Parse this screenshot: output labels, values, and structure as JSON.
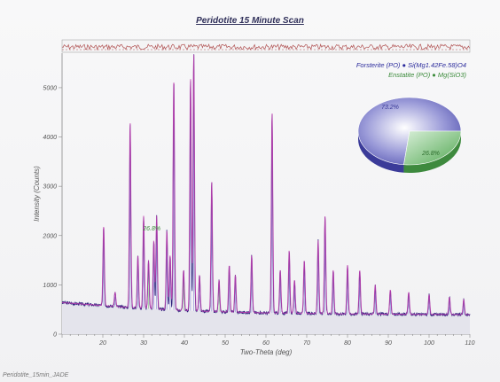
{
  "title": "Peridotite 15 Minute Scan",
  "footer": "Peridotite_15min_JADE",
  "legend": [
    {
      "label": "Forsterite (PO) ● Si(Mg1.42Fe.58)O4",
      "color": "#3b3bb3"
    },
    {
      "label": "Enstatite (PO) ● Mg(SiO3)",
      "color": "#3e9a3e"
    }
  ],
  "colors": {
    "observed": "#2a1f7a",
    "calculated": "#c040b0",
    "residual": "#b05050",
    "forsterite": "#5555cc",
    "enstatite": "#4aa84a"
  },
  "chart_data": {
    "type": "line",
    "title": "Peridotite 15 Minute Scan",
    "xlabel": "Two-Theta (deg)",
    "ylabel": "Intensity (Counts)",
    "xlim": [
      10,
      110
    ],
    "ylim": [
      0,
      5700
    ],
    "xticks": [
      20,
      30,
      40,
      50,
      60,
      70,
      80,
      90,
      100,
      110
    ],
    "yticks": [
      0,
      1000,
      2000,
      3000,
      4000,
      5000
    ],
    "background": [
      [
        10,
        640
      ],
      [
        20,
        580
      ],
      [
        30,
        520
      ],
      [
        40,
        480
      ],
      [
        50,
        450
      ],
      [
        60,
        430
      ],
      [
        70,
        420
      ],
      [
        80,
        410
      ],
      [
        90,
        405
      ],
      [
        100,
        400
      ],
      [
        110,
        395
      ]
    ],
    "peaks": [
      {
        "x": 20.2,
        "y": 2200,
        "phase": "forsterite"
      },
      {
        "x": 23.0,
        "y": 850,
        "phase": "forsterite"
      },
      {
        "x": 26.7,
        "y": 4300,
        "phase": "forsterite"
      },
      {
        "x": 28.6,
        "y": 1600,
        "phase": "forsterite"
      },
      {
        "x": 30.0,
        "y": 2400,
        "phase": "forsterite"
      },
      {
        "x": 31.2,
        "y": 1500,
        "phase": "enstatite"
      },
      {
        "x": 32.5,
        "y": 1900,
        "phase": "forsterite"
      },
      {
        "x": 33.2,
        "y": 2400,
        "phase": "forsterite"
      },
      {
        "x": 35.7,
        "y": 2100,
        "phase": "forsterite"
      },
      {
        "x": 36.5,
        "y": 1600,
        "phase": "forsterite"
      },
      {
        "x": 37.4,
        "y": 5200,
        "phase": "forsterite"
      },
      {
        "x": 39.8,
        "y": 1300,
        "phase": "enstatite"
      },
      {
        "x": 41.5,
        "y": 5200,
        "phase": "forsterite"
      },
      {
        "x": 42.3,
        "y": 5700,
        "phase": "forsterite"
      },
      {
        "x": 43.7,
        "y": 1200,
        "phase": "forsterite"
      },
      {
        "x": 46.7,
        "y": 3100,
        "phase": "forsterite"
      },
      {
        "x": 48.5,
        "y": 1100,
        "phase": "enstatite"
      },
      {
        "x": 51.0,
        "y": 1400,
        "phase": "forsterite"
      },
      {
        "x": 52.5,
        "y": 1200,
        "phase": "forsterite"
      },
      {
        "x": 56.5,
        "y": 1600,
        "phase": "forsterite"
      },
      {
        "x": 61.5,
        "y": 4500,
        "phase": "forsterite"
      },
      {
        "x": 63.5,
        "y": 1300,
        "phase": "forsterite"
      },
      {
        "x": 65.7,
        "y": 1700,
        "phase": "forsterite"
      },
      {
        "x": 67.0,
        "y": 1100,
        "phase": "forsterite"
      },
      {
        "x": 69.4,
        "y": 1500,
        "phase": "forsterite"
      },
      {
        "x": 72.8,
        "y": 1900,
        "phase": "forsterite"
      },
      {
        "x": 74.5,
        "y": 2400,
        "phase": "forsterite"
      },
      {
        "x": 76.5,
        "y": 1300,
        "phase": "forsterite"
      },
      {
        "x": 80.0,
        "y": 1400,
        "phase": "forsterite"
      },
      {
        "x": 83.0,
        "y": 1300,
        "phase": "forsterite"
      },
      {
        "x": 86.8,
        "y": 1000,
        "phase": "forsterite"
      },
      {
        "x": 90.5,
        "y": 900,
        "phase": "forsterite"
      },
      {
        "x": 95.0,
        "y": 850,
        "phase": "forsterite"
      },
      {
        "x": 100.0,
        "y": 800,
        "phase": "forsterite"
      },
      {
        "x": 105.0,
        "y": 750,
        "phase": "forsterite"
      },
      {
        "x": 108.5,
        "y": 700,
        "phase": "forsterite"
      }
    ],
    "phase_annotation": {
      "label": "26.8%",
      "x": 32.0,
      "y": 2100
    },
    "pie": {
      "slices": [
        {
          "label": "73.2%",
          "value": 73.2,
          "phase": "Forsterite"
        },
        {
          "label": "26.8%",
          "value": 26.8,
          "phase": "Enstatite"
        }
      ]
    },
    "grid": false,
    "legend_position": "top-right"
  }
}
